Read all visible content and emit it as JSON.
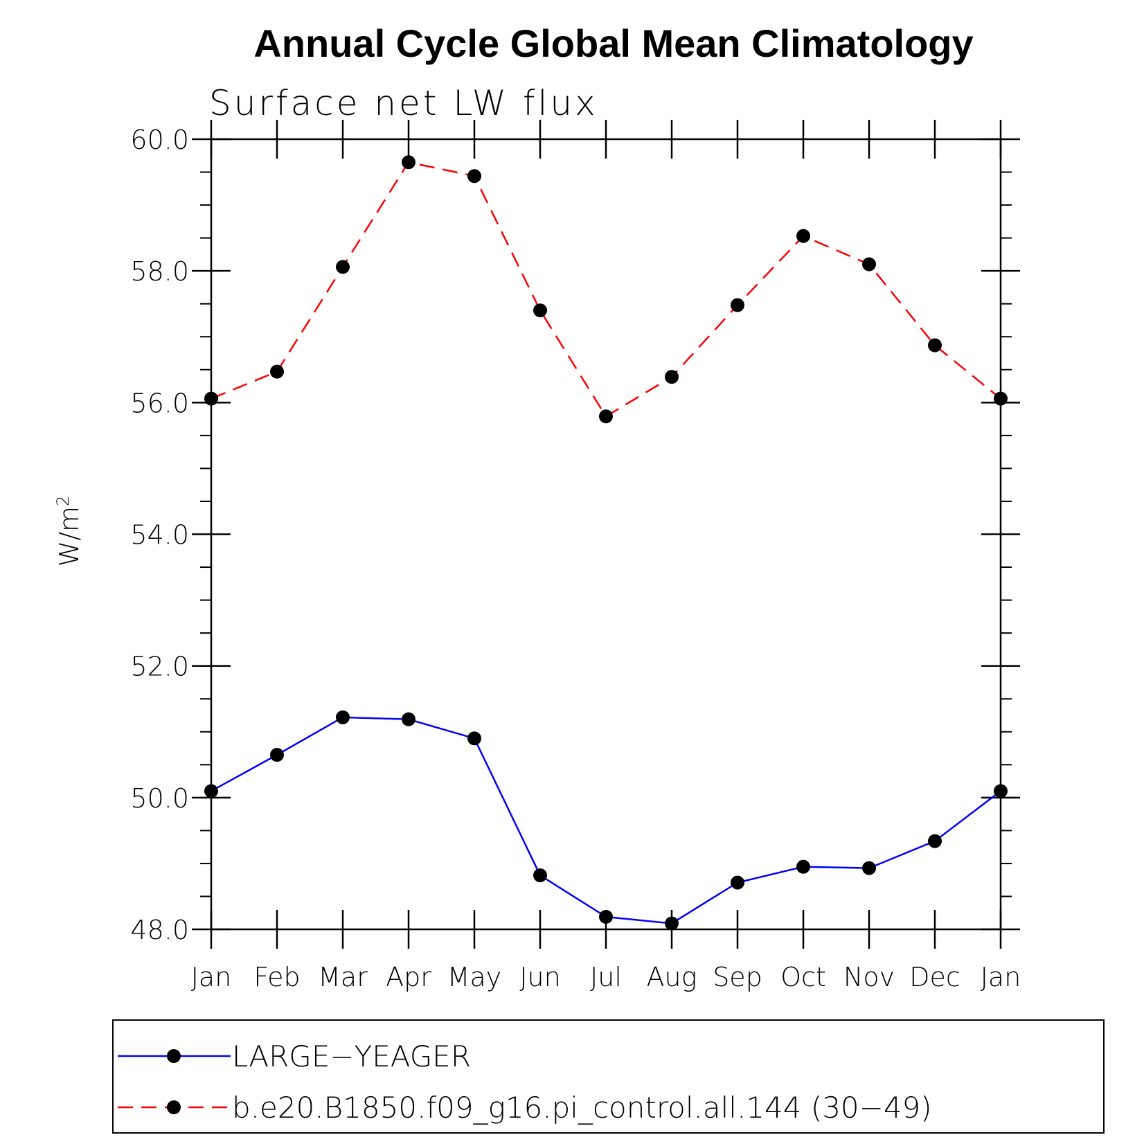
{
  "chart_data": {
    "type": "line",
    "title": "Annual Cycle Global Mean Climatology",
    "subtitle": "Surface net LW flux",
    "xlabel": "",
    "ylabel_base": "W/m",
    "ylabel_sup": "2",
    "categories": [
      "Jan",
      "Feb",
      "Mar",
      "Apr",
      "May",
      "Jun",
      "Jul",
      "Aug",
      "Sep",
      "Oct",
      "Nov",
      "Dec",
      "Jan"
    ],
    "ylim": [
      48.0,
      60.0
    ],
    "yticks": [
      "48.0",
      "50.0",
      "52.0",
      "54.0",
      "56.0",
      "58.0",
      "60.0"
    ],
    "grid": false,
    "legend_position": "bottom",
    "series": [
      {
        "name": "LARGE−YEAGER",
        "color": "#0000ff",
        "dash": "solid",
        "marker": "filled-circle",
        "values": [
          50.1,
          50.65,
          51.22,
          51.19,
          50.9,
          48.82,
          48.19,
          48.09,
          48.71,
          48.95,
          48.93,
          49.34,
          50.1
        ]
      },
      {
        "name": "b.e20.B1850.f09_g16.pi_control.all.144 (30−49)",
        "color": "#ff0000",
        "dash": "dashed",
        "marker": "filled-circle",
        "values": [
          56.06,
          56.47,
          58.06,
          59.65,
          59.44,
          57.4,
          55.79,
          56.39,
          57.48,
          58.53,
          58.1,
          56.87,
          56.06
        ]
      }
    ]
  }
}
